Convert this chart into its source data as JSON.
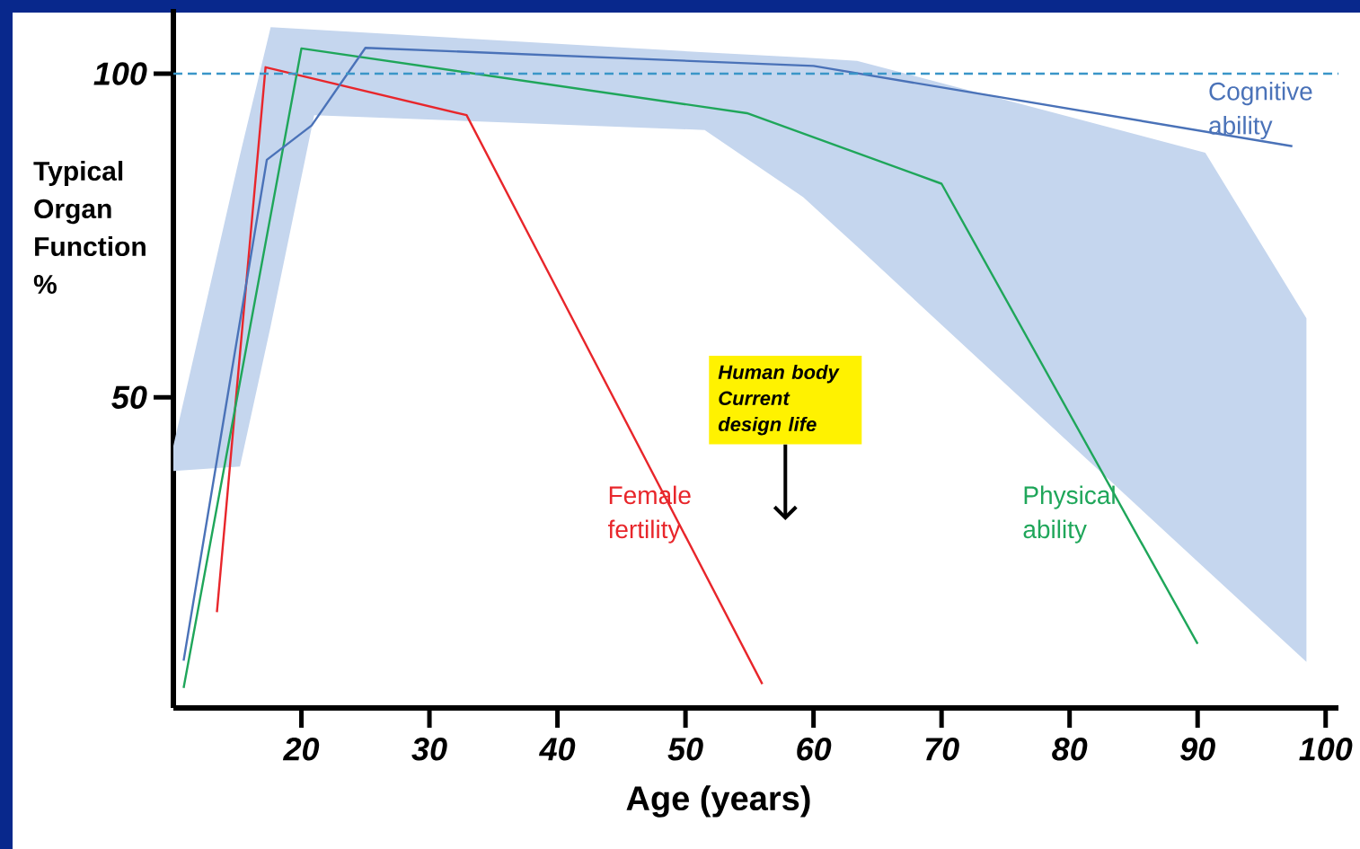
{
  "chart_data": {
    "type": "line",
    "xlabel": "Age (years)",
    "ylabel": "Typical Organ Function %",
    "xlim": [
      10,
      101
    ],
    "ylim": [
      2,
      110
    ],
    "xticks": [
      20,
      30,
      40,
      50,
      60,
      70,
      80,
      90,
      100
    ],
    "yticks": [
      50,
      100
    ],
    "grid": false,
    "marker": "none",
    "line_style": "solid",
    "series": [
      {
        "type": "area",
        "color": "#c5d6ee",
        "x": [
          10,
          15.2,
          17.6,
          21,
          51.5,
          59.2,
          63.4,
          90.6,
          98.5
        ],
        "values": [
          null,
          null,
          null,
          null,
          null,
          null,
          null,
          null,
          null
        ],
        "lower": [
          38.6,
          39.3,
          61,
          93.6,
          91.3,
          80.9,
          73.3,
          23.5,
          9.1
        ],
        "upper": [
          42.5,
          87.4,
          107.2,
          106.8,
          103.3,
          102.5,
          102,
          87.8,
          62.2
        ]
      },
      {
        "name": "Female fertility",
        "color": "#e8262b",
        "x": [
          13.4,
          17.2,
          32.9,
          56
        ],
        "values": [
          16.8,
          101,
          93.6,
          5.7
        ]
      },
      {
        "name": "Physical ability",
        "color": "#1fa65a",
        "x": [
          10.8,
          20,
          54.8,
          70,
          90
        ],
        "values": [
          5.1,
          103.9,
          93.9,
          83,
          11.9
        ]
      },
      {
        "name": "Cognitive ability",
        "color": "#4a72b8",
        "x": [
          10.8,
          17.3,
          20.8,
          25,
          60,
          97.4
        ],
        "values": [
          9.3,
          86.7,
          92,
          104,
          101.2,
          88.8
        ]
      }
    ],
    "ref_lines": [
      {
        "axis": "y",
        "value": 100,
        "color": "#3a96c8",
        "line_style": "dashed"
      }
    ],
    "annotations": [
      "Human body Current design life"
    ]
  }
}
